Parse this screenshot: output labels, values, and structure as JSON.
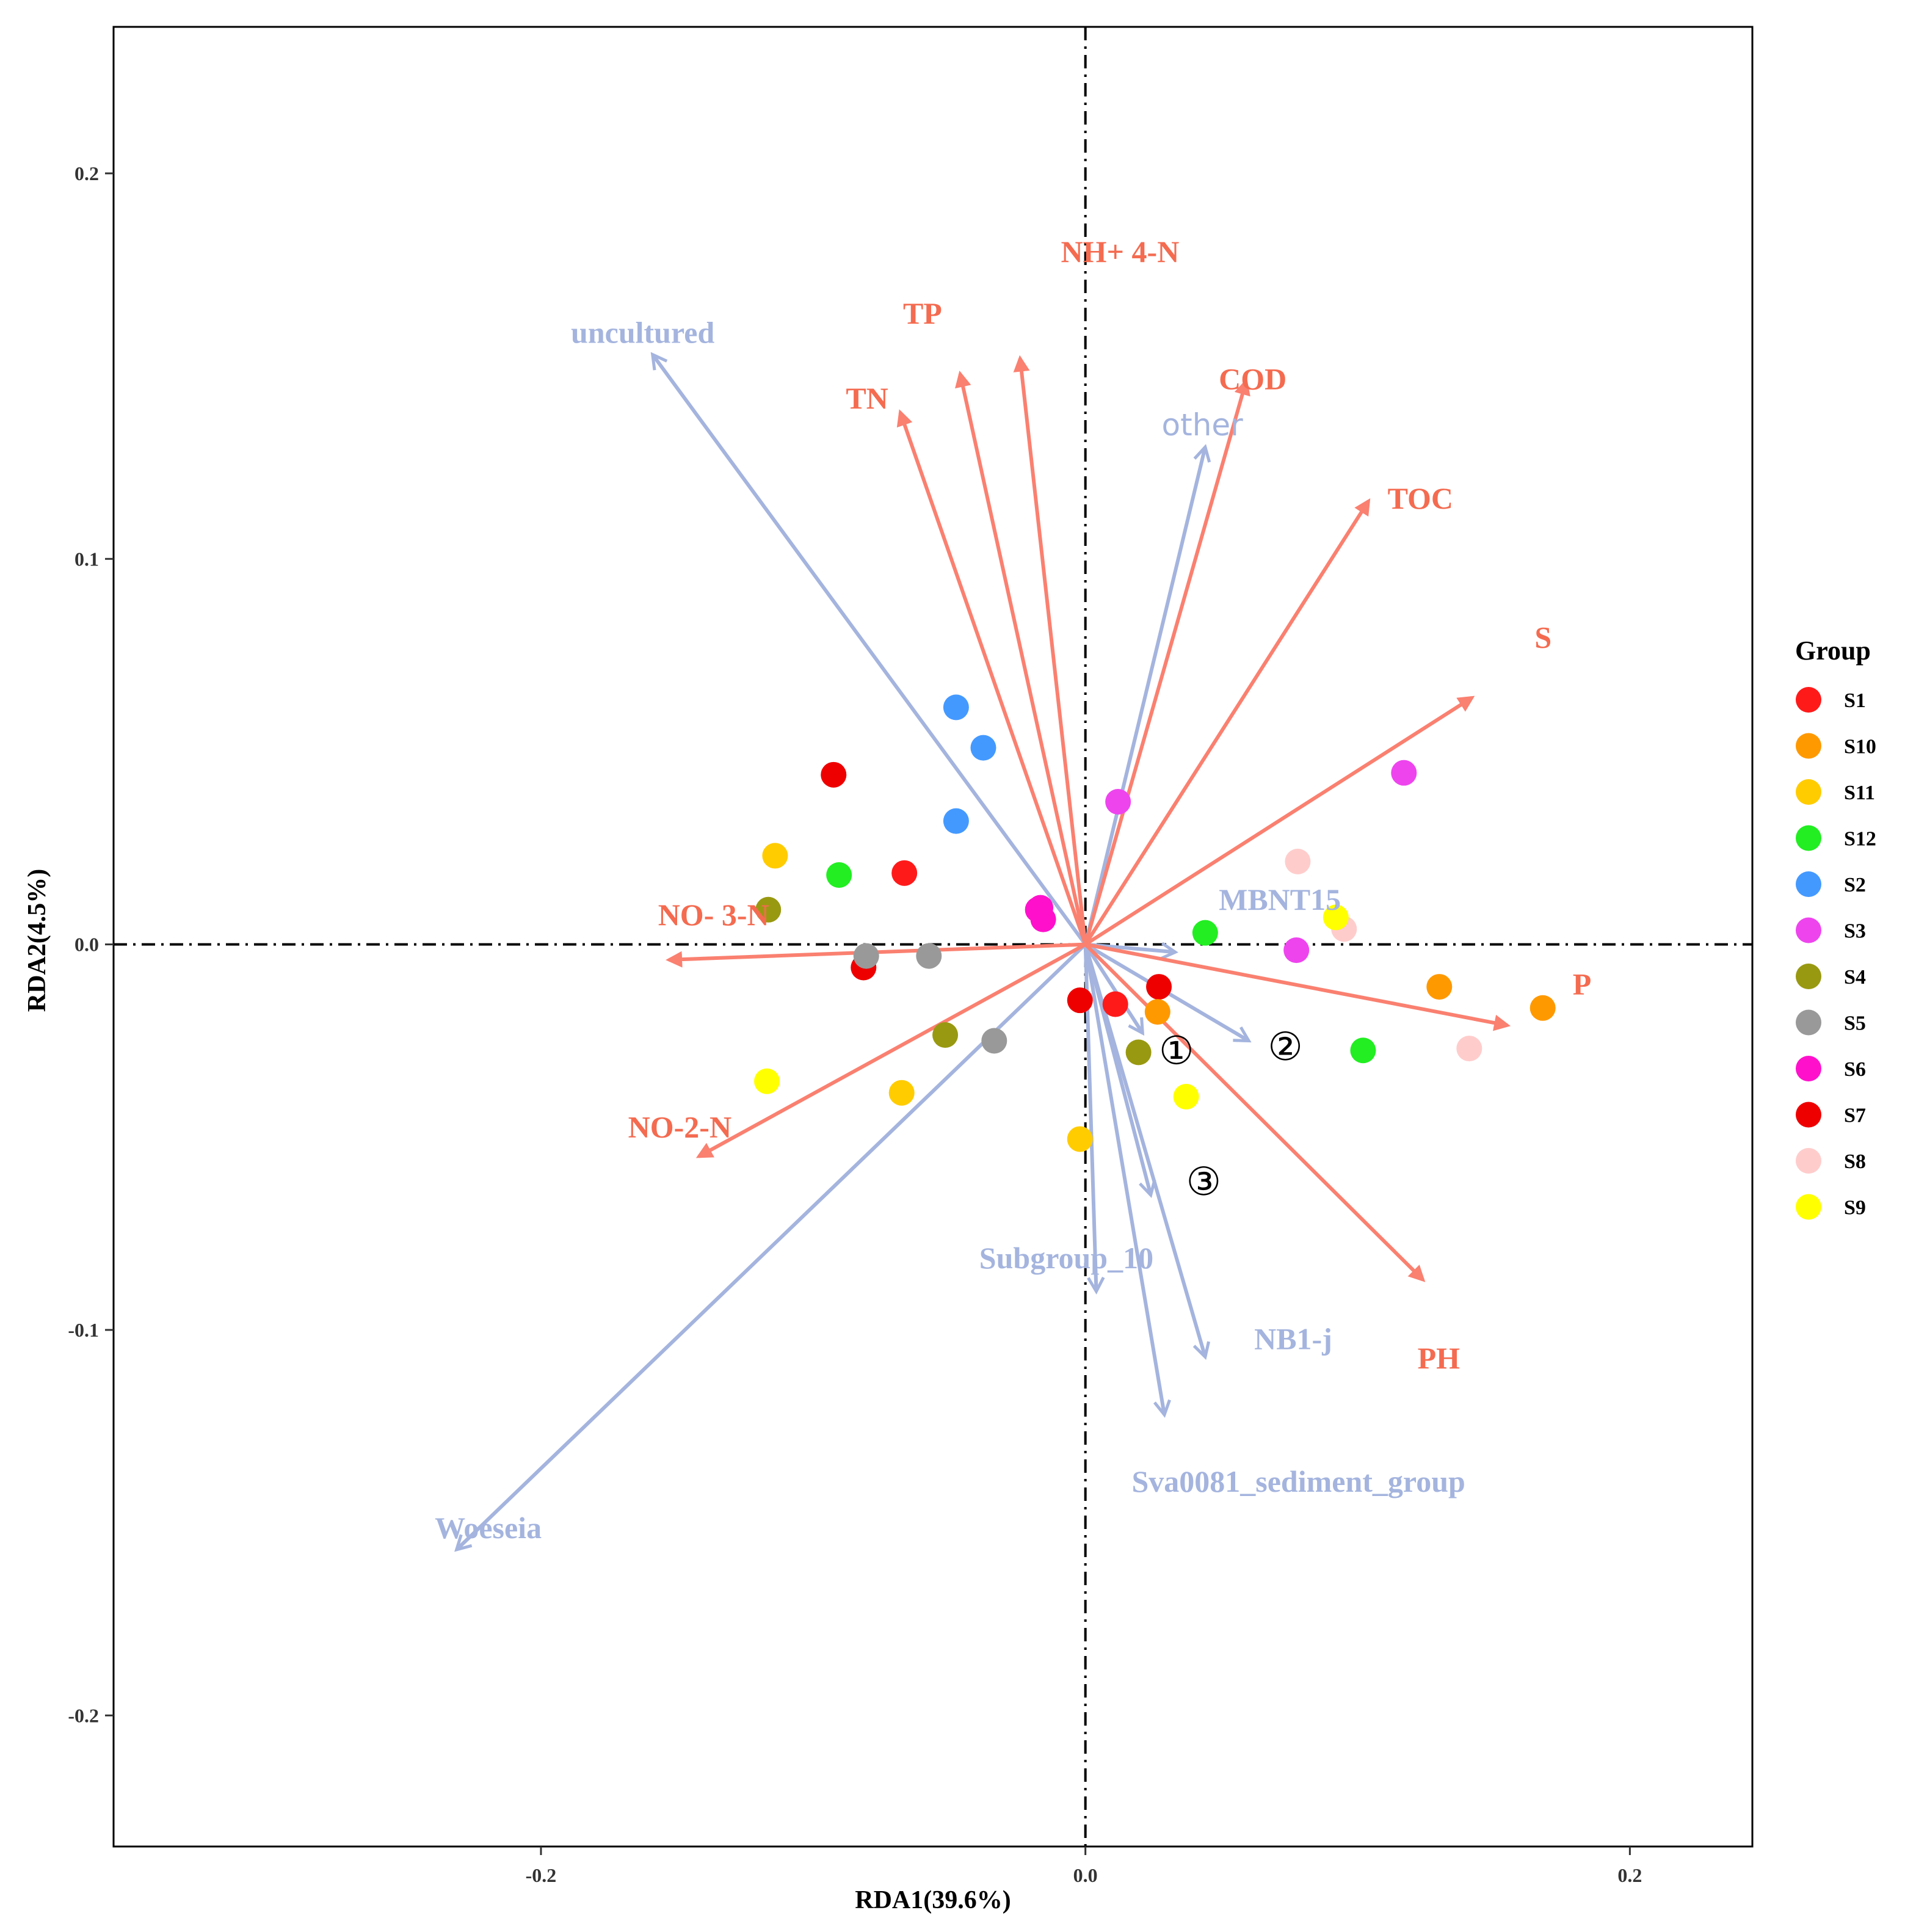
{
  "chart_data": {
    "type": "scatter",
    "subtype": "rda-biplot",
    "xlabel": "RDA1(39.6%)",
    "ylabel": "RDA2(4.5%)",
    "xlim": [
      -0.357,
      0.245
    ],
    "ylim": [
      -0.234,
      0.238
    ],
    "x_ticks": [
      {
        "value": -0.2,
        "label": "-0.2"
      },
      {
        "value": 0.0,
        "label": "0.0"
      },
      {
        "value": 0.2,
        "label": "0.2"
      }
    ],
    "y_ticks": [
      {
        "value": 0.2,
        "label": "0.2"
      },
      {
        "value": 0.1,
        "label": "0.1"
      },
      {
        "value": 0.0,
        "label": "0.0"
      },
      {
        "value": -0.1,
        "label": "-0.1"
      },
      {
        "value": -0.2,
        "label": "-0.2"
      }
    ],
    "grid": false,
    "legend": {
      "title": "Group",
      "position": "right"
    },
    "groups": [
      {
        "name": "S1",
        "color": "#FF1A1A"
      },
      {
        "name": "S10",
        "color": "#FF9900"
      },
      {
        "name": "S11",
        "color": "#FFCC00"
      },
      {
        "name": "S12",
        "color": "#22EE22"
      },
      {
        "name": "S2",
        "color": "#4499FF"
      },
      {
        "name": "S3",
        "color": "#EE44EE"
      },
      {
        "name": "S4",
        "color": "#999911"
      },
      {
        "name": "S5",
        "color": "#999999"
      },
      {
        "name": "S6",
        "color": "#FF11CC"
      },
      {
        "name": "S7",
        "color": "#EE0000"
      },
      {
        "name": "S8",
        "color": "#FFCCCC"
      },
      {
        "name": "S9",
        "color": "#FFFF00"
      }
    ],
    "points": [
      {
        "x": -0.0925,
        "y": 0.044,
        "group": "S7"
      },
      {
        "x": -0.0665,
        "y": 0.0185,
        "group": "S1"
      },
      {
        "x": -0.0815,
        "y": -0.006,
        "group": "S7"
      },
      {
        "x": -0.002,
        "y": -0.0145,
        "group": "S7"
      },
      {
        "x": 0.011,
        "y": -0.0155,
        "group": "S1"
      },
      {
        "x": 0.027,
        "y": -0.011,
        "group": "S7"
      },
      {
        "x": -0.114,
        "y": 0.023,
        "group": "S11"
      },
      {
        "x": -0.0675,
        "y": -0.0385,
        "group": "S11"
      },
      {
        "x": -0.002,
        "y": -0.0505,
        "group": "S11"
      },
      {
        "x": -0.0905,
        "y": 0.018,
        "group": "S12"
      },
      {
        "x": 0.044,
        "y": 0.003,
        "group": "S12"
      },
      {
        "x": 0.102,
        "y": -0.0275,
        "group": "S12"
      },
      {
        "x": -0.0475,
        "y": 0.0615,
        "group": "S2"
      },
      {
        "x": -0.0375,
        "y": 0.051,
        "group": "S2"
      },
      {
        "x": -0.0475,
        "y": 0.032,
        "group": "S2"
      },
      {
        "x": 0.012,
        "y": 0.037,
        "group": "S3"
      },
      {
        "x": 0.117,
        "y": 0.0445,
        "group": "S3"
      },
      {
        "x": 0.0775,
        "y": -0.0015,
        "group": "S3"
      },
      {
        "x": -0.1165,
        "y": 0.009,
        "group": "S4"
      },
      {
        "x": -0.0515,
        "y": -0.0235,
        "group": "S4"
      },
      {
        "x": 0.0195,
        "y": -0.028,
        "group": "S4"
      },
      {
        "x": -0.0805,
        "y": -0.003,
        "group": "S5"
      },
      {
        "x": -0.0575,
        "y": -0.003,
        "group": "S5"
      },
      {
        "x": -0.0335,
        "y": -0.025,
        "group": "S5"
      },
      {
        "x": -0.0175,
        "y": 0.009,
        "group": "S6"
      },
      {
        "x": -0.0155,
        "y": 0.0065,
        "group": "S6"
      },
      {
        "x": -0.0165,
        "y": 0.0095,
        "group": "S6"
      },
      {
        "x": 0.078,
        "y": 0.0215,
        "group": "S8"
      },
      {
        "x": 0.095,
        "y": 0.004,
        "group": "S8"
      },
      {
        "x": 0.141,
        "y": -0.027,
        "group": "S8"
      },
      {
        "x": -0.117,
        "y": -0.0355,
        "group": "S9"
      },
      {
        "x": 0.092,
        "y": 0.007,
        "group": "S9"
      },
      {
        "x": 0.037,
        "y": -0.0395,
        "group": "S9"
      },
      {
        "x": 0.0265,
        "y": -0.0175,
        "group": "S10"
      },
      {
        "x": 0.13,
        "y": -0.011,
        "group": "S10"
      },
      {
        "x": 0.168,
        "y": -0.0165,
        "group": "S10"
      }
    ],
    "environment_vectors": {
      "color": "#FA8070",
      "label_color": "#F46B50",
      "items": [
        {
          "name": "NH+ 4-N",
          "x": -0.024,
          "y": 0.152,
          "label_x": -0.009,
          "label_y": 0.177
        },
        {
          "name": "TP",
          "x": -0.046,
          "y": 0.148,
          "label_x": -0.067,
          "label_y": 0.161
        },
        {
          "name": "TN",
          "x": -0.068,
          "y": 0.138,
          "label_x": -0.088,
          "label_y": 0.139
        },
        {
          "name": "COD",
          "x": 0.059,
          "y": 0.146,
          "label_x": 0.049,
          "label_y": 0.144
        },
        {
          "name": "TOC",
          "x": 0.104,
          "y": 0.115,
          "label_x": 0.111,
          "label_y": 0.113
        },
        {
          "name": "S",
          "x": 0.142,
          "y": 0.064,
          "label_x": 0.165,
          "label_y": 0.077
        },
        {
          "name": "P",
          "x": 0.155,
          "y": -0.021,
          "label_x": 0.179,
          "label_y": -0.013
        },
        {
          "name": "PH",
          "x": 0.124,
          "y": -0.087,
          "label_x": 0.122,
          "label_y": -0.11
        },
        {
          "name": "NO- 3-N",
          "x": -0.153,
          "y": -0.004,
          "label_x": -0.157,
          "label_y": 0.005
        },
        {
          "name": "NO-2-N",
          "x": -0.142,
          "y": -0.055,
          "label_x": -0.168,
          "label_y": -0.05
        }
      ]
    },
    "genus_vectors": {
      "color": "#A4B4DE",
      "items": [
        {
          "name": "uncultured",
          "x": -0.159,
          "y": 0.153,
          "label_x": -0.189,
          "label_y": 0.156
        },
        {
          "name": "other",
          "x": 0.044,
          "y": 0.129,
          "label_x": 0.028,
          "label_y": 0.132
        },
        {
          "name": "MBNT15",
          "x": 0.033,
          "y": -0.002,
          "label_x": 0.049,
          "label_y": 0.009
        },
        {
          "name": "Subgroup_10",
          "x": 0.004,
          "y": -0.09,
          "label_x": -0.039,
          "label_y": -0.084
        },
        {
          "name": "NB1-j",
          "x": 0.044,
          "y": -0.107,
          "label_x": 0.062,
          "label_y": -0.105
        },
        {
          "name": "Sva0081_sediment_group",
          "x": 0.029,
          "y": -0.122,
          "label_x": 0.017,
          "label_y": -0.142
        },
        {
          "name": "Woeseia",
          "x": -0.231,
          "y": -0.157,
          "label_x": -0.239,
          "label_y": -0.154
        },
        {
          "name": "①",
          "x": 0.021,
          "y": -0.023,
          "label_x": 0.027,
          "label_y": -0.031
        },
        {
          "name": "②",
          "x": 0.06,
          "y": -0.025,
          "label_x": 0.067,
          "label_y": -0.03
        },
        {
          "name": "③",
          "x": 0.024,
          "y": -0.065,
          "label_x": 0.037,
          "label_y": -0.065
        }
      ]
    }
  }
}
